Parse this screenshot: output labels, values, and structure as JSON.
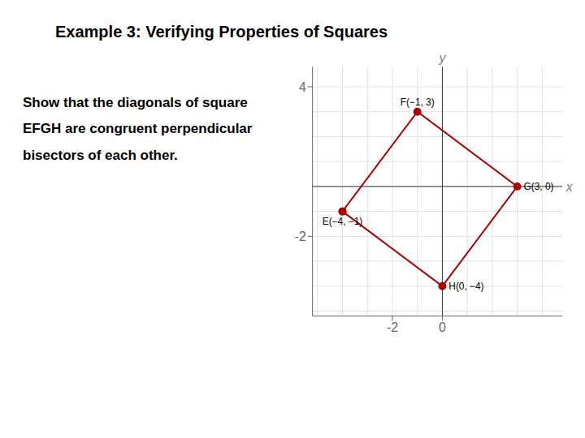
{
  "chart_data": {
    "type": "line",
    "title": "Example 3: Verifying Properties of Squares",
    "subtitle": "Show that the diagonals of square EFGH are congruent perpendicular bisectors of each other.",
    "xlabel": "x",
    "ylabel": "y",
    "x": [
      -4,
      -1,
      3,
      0,
      -4
    ],
    "values": [
      -1,
      3,
      0,
      -4,
      -1
    ],
    "color": "#aa0000",
    "marker": "circle",
    "xlim": [
      -5.2,
      4.8
    ],
    "ylim": [
      -5.2,
      4.8
    ],
    "xticks": [
      -2,
      0
    ],
    "yticks": [
      -2,
      4
    ],
    "grid": true,
    "annotations": [
      {
        "text": "E(−4, −1)",
        "x": -4,
        "y": -1
      },
      {
        "text": "F(−1, 3)",
        "x": -1,
        "y": 3
      },
      {
        "text": "G(3, 0)",
        "x": 3,
        "y": 0
      },
      {
        "text": "H(0, −4)",
        "x": 0,
        "y": -4
      }
    ]
  }
}
